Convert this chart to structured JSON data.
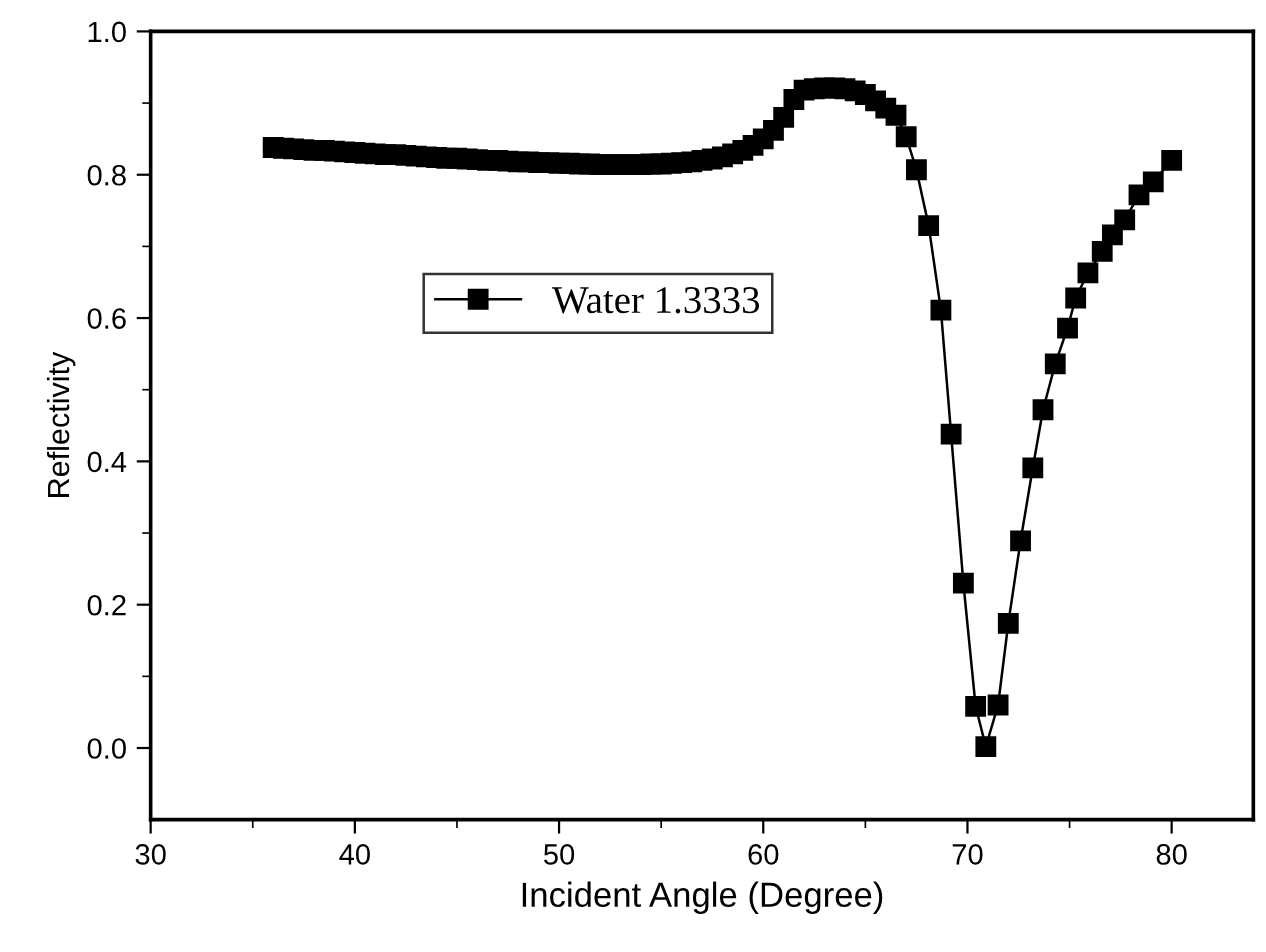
{
  "chart_data": {
    "type": "line",
    "xlabel": "Incident Angle (Degree)",
    "ylabel": "Reflectivity",
    "xlim": [
      30,
      84
    ],
    "ylim": [
      -0.1,
      1.0
    ],
    "xticks": [
      30,
      40,
      50,
      60,
      70,
      80
    ],
    "yticks": [
      {
        "value": 0,
        "label": "0.0"
      },
      0.2,
      0.4,
      0.6,
      0.8,
      {
        "value": 1,
        "label": "1.0"
      }
    ],
    "marker": "square",
    "line_style": "solid",
    "legend": "left",
    "grid": false,
    "series": [
      {
        "name": "Water 1.3333",
        "color": "#000000",
        "x": [
          36,
          36.5,
          37,
          37.5,
          38,
          38.5,
          39,
          39.5,
          40,
          40.5,
          41,
          41.5,
          42,
          42.5,
          43,
          43.5,
          44,
          44.5,
          45,
          45.5,
          46,
          46.5,
          47,
          47.5,
          48,
          48.5,
          49,
          49.5,
          50,
          50.5,
          51,
          51.5,
          52,
          52.5,
          53,
          53.5,
          54,
          54.5,
          55,
          55.5,
          56,
          56.5,
          57,
          57.5,
          58,
          58.5,
          59,
          59.5,
          60,
          60.5,
          61,
          61.5,
          62,
          62.5,
          63,
          63.5,
          64,
          64.5,
          65,
          65.5,
          66,
          66.5,
          67,
          67.5,
          68.1,
          68.7,
          69.2,
          69.8,
          70.4,
          70.9,
          71.5,
          72.0,
          72.6,
          73.2,
          73.7,
          74.3,
          74.9,
          75.3,
          75.9,
          76.6,
          77.1,
          77.7,
          78.4,
          79.1,
          80
        ],
        "values": [
          0.838,
          0.837,
          0.836,
          0.835,
          0.834,
          0.834,
          0.833,
          0.832,
          0.831,
          0.83,
          0.829,
          0.828,
          0.828,
          0.827,
          0.826,
          0.825,
          0.824,
          0.823,
          0.823,
          0.822,
          0.821,
          0.82,
          0.82,
          0.819,
          0.818,
          0.818,
          0.817,
          0.817,
          0.816,
          0.816,
          0.815,
          0.815,
          0.814,
          0.814,
          0.814,
          0.814,
          0.814,
          0.815,
          0.815,
          0.816,
          0.817,
          0.818,
          0.82,
          0.822,
          0.825,
          0.829,
          0.834,
          0.841,
          0.85,
          0.862,
          0.88,
          0.905,
          0.918,
          0.92,
          0.921,
          0.921,
          0.92,
          0.917,
          0.912,
          0.903,
          0.893,
          0.883,
          0.853,
          0.807,
          0.729,
          0.611,
          0.438,
          0.23,
          0.058,
          0.002,
          0.06,
          0.174,
          0.289,
          0.391,
          0.472,
          0.536,
          0.586,
          0.628,
          0.663,
          0.693,
          0.716,
          0.737,
          0.772,
          0.79,
          0.82
        ]
      }
    ]
  }
}
